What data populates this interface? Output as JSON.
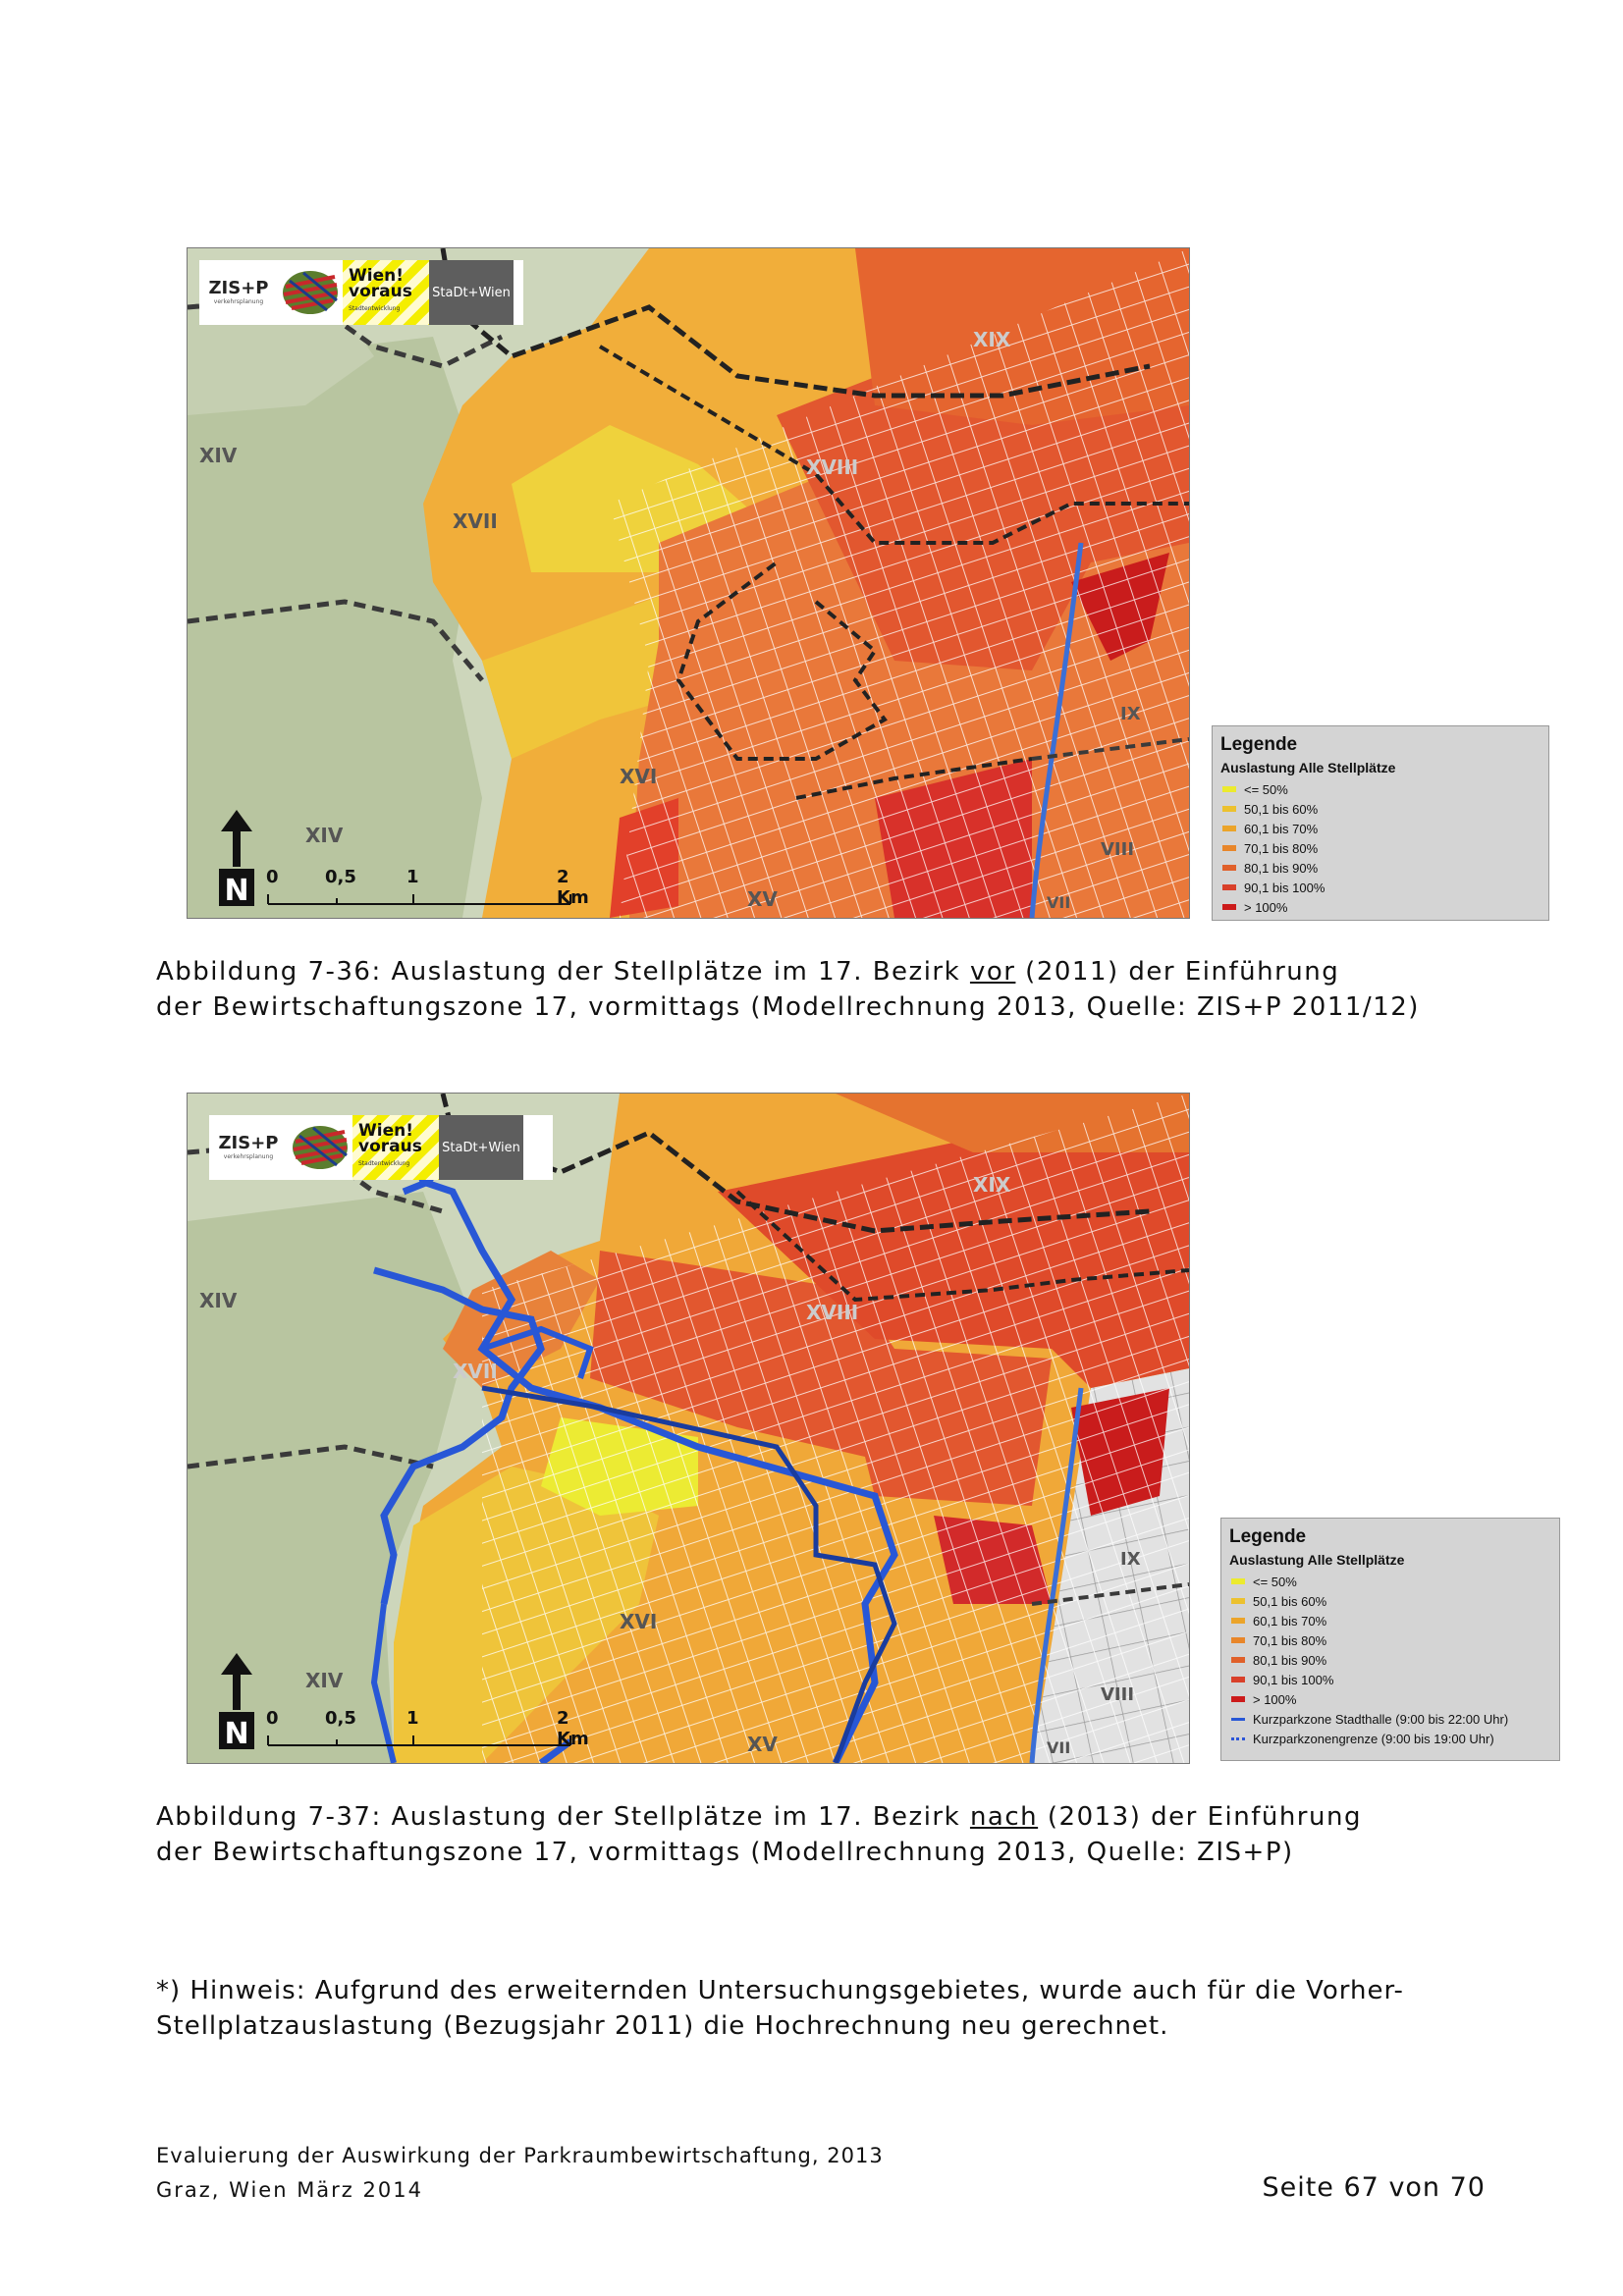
{
  "figures": [
    {
      "logos": {
        "zis": "ZIS+P",
        "zis_sub": "verkehrsplanung",
        "wien": "Wien! voraus",
        "wien_sub": "Stadtentwicklung",
        "stadt": "StaDt+Wien"
      },
      "districts": [
        "XIV",
        "XVII",
        "XVIII",
        "XIX",
        "XVI",
        "XIV",
        "XV",
        "IX",
        "VIII",
        "VII"
      ],
      "scale": [
        "0",
        "0,5",
        "1",
        "2 Km"
      ],
      "north": "N"
    },
    {
      "logos": {
        "zis": "ZIS+P",
        "zis_sub": "verkehrsplanung",
        "wien": "Wien! voraus",
        "wien_sub": "Stadtentwicklung",
        "stadt": "StaDt+Wien"
      },
      "districts": [
        "XIV",
        "XVII",
        "XVIII",
        "XIX",
        "XVI",
        "XIV",
        "XV",
        "IX",
        "VIII",
        "VII"
      ],
      "scale": [
        "0",
        "0,5",
        "1",
        "2 Km"
      ],
      "north": "N"
    }
  ],
  "legend1": {
    "title": "Legende",
    "subtitle": "Auslastung Alle Stellplätze",
    "items": [
      "<= 50%",
      "50,1 bis 60%",
      "60,1 bis 70%",
      "70,1 bis 80%",
      "80,1 bis 90%",
      "90,1 bis 100%",
      "> 100%"
    ]
  },
  "legend2": {
    "title": "Legende",
    "subtitle": "Auslastung Alle Stellplätze",
    "items": [
      "<= 50%",
      "50,1 bis 60%",
      "60,1 bis 70%",
      "70,1 bis 80%",
      "80,1 bis 90%",
      "90,1 bis 100%",
      "> 100%"
    ],
    "line_items": [
      "Kurzparkzone Stadthalle (9:00 bis 22:00 Uhr)",
      "Kurzparkzonengrenze (9:00 bis 19:00 Uhr)"
    ]
  },
  "legend_colors": [
    "#ecea2e",
    "#ecc12e",
    "#eba42a",
    "#e8862a",
    "#e0602a",
    "#d9402a",
    "#cc1b1b"
  ],
  "caption1": {
    "a": "Abbildung 7-36: Auslastung der Stellplätze im 17. Bezirk ",
    "u": "vor",
    "b": " (2011) der Einführung",
    "line2": "der Bewirtschaftungszone 17, vormittags (Modellrechnung 2013, Quelle: ZIS+P 2011/12)"
  },
  "caption2": {
    "a": "Abbildung 7-37: Auslastung der Stellplätze im 17. Bezirk ",
    "u": "nach",
    "b": " (2013) der Einführung",
    "line2": "der Bewirtschaftungszone 17, vormittags (Modellrechnung 2013, Quelle: ZIS+P)"
  },
  "note": {
    "line1": "*) Hinweis: Aufgrund des erweiternden Untersuchungsgebietes, wurde auch für die Vorher-",
    "line2": "Stellplatzauslastung (Bezugsjahr 2011) die Hochrechnung neu gerechnet."
  },
  "footer": {
    "line1": "Evaluierung der Auswirkung der Parkraumbewirtschaftung, 2013",
    "line2": "Graz, Wien März 2014",
    "page": "Seite 67 von 70"
  }
}
